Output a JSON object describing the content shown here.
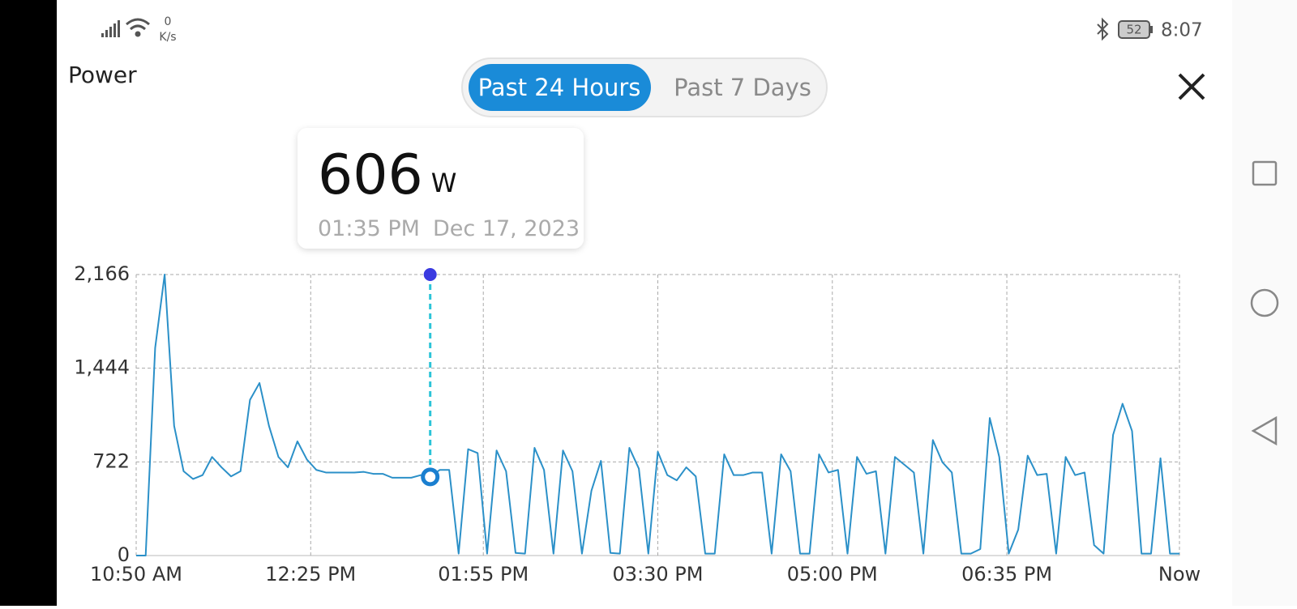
{
  "status_bar": {
    "net_speed": "0",
    "net_unit": "K/s",
    "battery": "52",
    "time": "8:07"
  },
  "header": {
    "title": "Power",
    "tabs": [
      "Past 24 Hours",
      "Past 7 Days"
    ]
  },
  "chart_data": {
    "type": "line",
    "series": [
      {
        "color": "#2b90c8",
        "x": [
          0,
          5,
          10,
          15,
          20,
          25,
          30,
          35,
          40,
          45,
          50,
          55,
          60,
          65,
          70,
          75,
          80,
          85,
          90,
          95,
          100,
          105,
          110,
          115,
          120,
          125,
          130,
          135,
          140,
          145,
          150,
          155,
          160,
          165,
          170,
          175,
          180,
          185,
          190,
          195,
          200,
          205,
          210,
          215,
          220,
          225,
          230,
          235,
          240,
          245,
          250,
          255,
          260,
          265,
          270,
          275,
          280,
          285,
          290,
          295,
          300,
          305,
          310,
          315,
          320,
          325,
          330,
          335,
          340,
          345,
          350,
          355,
          360,
          365,
          370,
          375,
          380,
          385,
          390,
          395,
          400,
          405,
          410,
          415,
          420,
          425,
          430,
          435,
          440,
          445,
          450,
          455,
          460,
          465,
          470,
          475,
          480,
          485,
          490,
          495,
          500,
          505,
          510,
          515,
          520,
          525,
          530,
          535,
          540,
          545,
          550
        ],
        "values": [
          0,
          0,
          1600,
          2166,
          1000,
          650,
          590,
          620,
          760,
          680,
          610,
          650,
          1200,
          1330,
          1000,
          760,
          680,
          880,
          740,
          660,
          640,
          640,
          640,
          640,
          645,
          630,
          630,
          600,
          600,
          600,
          620,
          606,
          660,
          660,
          15,
          820,
          790,
          15,
          810,
          650,
          20,
          15,
          830,
          660,
          15,
          810,
          650,
          15,
          500,
          730,
          20,
          15,
          830,
          670,
          15,
          800,
          620,
          580,
          680,
          610,
          15,
          15,
          780,
          620,
          620,
          640,
          640,
          15,
          780,
          650,
          15,
          15,
          780,
          640,
          660,
          15,
          760,
          630,
          650,
          15,
          760,
          700,
          640,
          15,
          890,
          720,
          640,
          15,
          15,
          50,
          1060,
          760,
          15,
          200,
          770,
          620,
          630,
          15,
          760,
          620,
          640,
          80,
          15,
          930,
          1170,
          960,
          15,
          15,
          750,
          15,
          15
        ]
      }
    ],
    "xlim": [
      0,
      550
    ],
    "xticks": [
      {
        "value": 0,
        "label": "10:50 AM"
      },
      {
        "value": 92,
        "label": "12:25 PM"
      },
      {
        "value": 183,
        "label": "01:55 PM"
      },
      {
        "value": 275,
        "label": "03:30 PM"
      },
      {
        "value": 367,
        "label": "05:00 PM"
      },
      {
        "value": 459,
        "label": "06:35 PM"
      },
      {
        "value": 550,
        "label": "Now"
      }
    ],
    "ylim": [
      0,
      2166
    ],
    "yticks": [
      0,
      722,
      {
        "value": 1444,
        "label": "1,444"
      },
      {
        "value": 2166,
        "label": "2,166"
      }
    ],
    "grid": true,
    "highlight": {
      "x": 155,
      "value": 606,
      "unit": "W",
      "time": "01:35 PM",
      "date": "Dec 17, 2023"
    }
  }
}
